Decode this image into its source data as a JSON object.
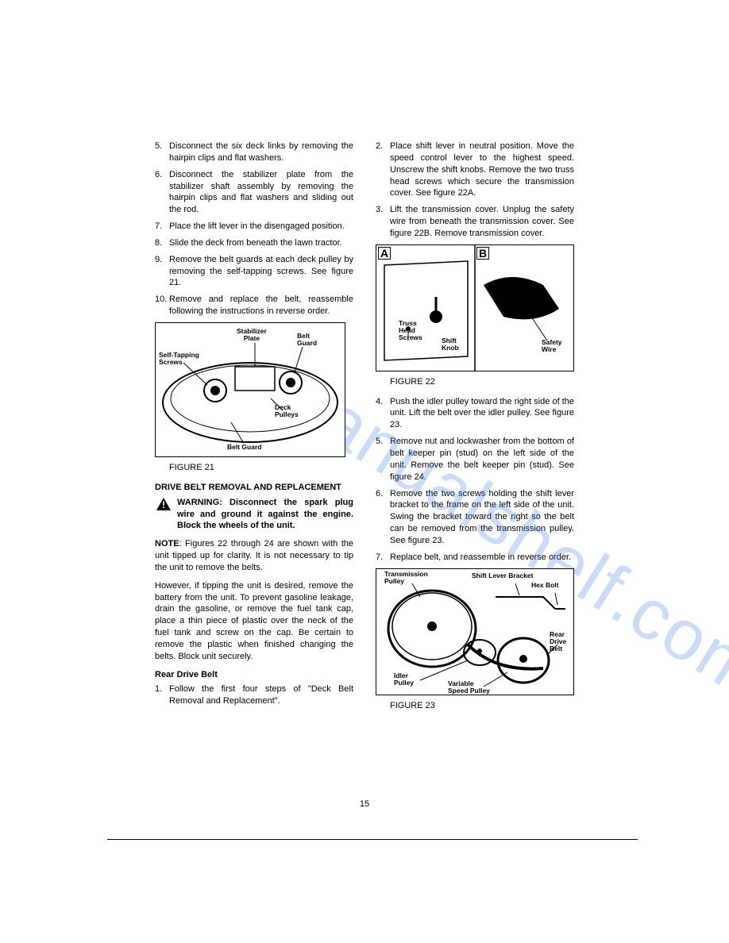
{
  "page_number": "15",
  "watermark": "manualshelf.com",
  "left_column": {
    "steps_a": [
      {
        "num": "5.",
        "text": "Disconnect the six deck links by removing the hairpin clips and flat washers."
      },
      {
        "num": "6.",
        "text": "Disconnect the stabilizer plate from the stabilizer shaft assembly by removing the hairpin clips and flat washers and sliding out the rod."
      },
      {
        "num": "7.",
        "text": "Place the lift lever in the disengaged position."
      },
      {
        "num": "8.",
        "text": "Slide the deck from beneath the lawn tractor."
      },
      {
        "num": "9.",
        "text": "Remove the belt guards at each deck pulley by removing the self-tapping screws. See figure 21."
      },
      {
        "num": "10.",
        "text": "Remove and replace the belt, reassemble following the instructions in reverse order."
      }
    ],
    "fig21": {
      "caption": "FIGURE 21",
      "labels": {
        "stabilizer_plate": "Stabilizer\nPlate",
        "belt_guard_top": "Belt\nGuard",
        "self_tapping": "Self-Tapping\nScrews",
        "deck_pulleys": "Deck\nPulleys",
        "belt_guard_bottom": "Belt Guard"
      }
    },
    "heading_drive": "DRIVE BELT REMOVAL AND REPLACEMENT",
    "warning": "WARNING: Disconnect the spark plug wire and ground it against the engine. Block the wheels of the unit.",
    "note": "NOTE: Figures 22 through 24 are shown with the unit tipped up for clarity. It is not necessary to tip the unit to remove the belts.",
    "para_tip": "However, if tipping the unit is desired, remove the battery from the unit. To prevent gasoline leakage, drain the gasoline, or remove the fuel tank cap, place a thin piece of plastic over the neck of the fuel tank and screw on the cap. Be certain to remove the plastic when finished changing the belts. Block unit securely.",
    "subheading_rear": "Rear Drive Belt",
    "rear_steps": [
      {
        "num": "1.",
        "text": "Follow the first four steps of \"Deck Belt Removal and Replacement\"."
      }
    ]
  },
  "right_column": {
    "steps_a": [
      {
        "num": "2.",
        "text": "Place shift lever in neutral position. Move the speed control lever to the highest speed. Unscrew the shift knobs. Remove the two truss head screws which secure the transmission cover. See figure 22A."
      },
      {
        "num": "3.",
        "text": "Lift the transmission cover. Unplug the safety wire from beneath the transmission cover. See figure 22B. Remove transmission cover."
      }
    ],
    "fig22": {
      "caption": "FIGURE 22",
      "panels": {
        "a": "A",
        "b": "B"
      },
      "labels": {
        "truss": "Truss\nHead\nScrews",
        "shift_knob": "Shift\nKnob",
        "safety_wire": "Safety\nWire"
      }
    },
    "steps_b": [
      {
        "num": "4.",
        "text": "Push the idler pulley toward the right side of the unit. Lift the belt over the idler pulley. See figure 23."
      },
      {
        "num": "5.",
        "text": "Remove nut and lockwasher from the bottom of belt keeper pin (stud) on the left side of the unit. Remove the belt keeper pin (stud). See figure 24."
      },
      {
        "num": "6.",
        "text": "Remove the two screws holding the shift lever bracket to the frame on the left side of the unit. Swing the bracket toward the right so the belt can be removed from the transmission pulley. See figure 23."
      },
      {
        "num": "7.",
        "text": "Replace belt, and reassemble in reverse order."
      }
    ],
    "fig23": {
      "caption": "FIGURE 23",
      "labels": {
        "trans_pulley": "Transmission\nPulley",
        "shift_bracket": "Shift Lever Bracket",
        "hex_bolt": "Hex Bolt",
        "rear_belt": "Rear\nDrive\nBelt",
        "idler_pulley": "Idler\nPulley",
        "var_speed": "Variable\nSpeed Pulley"
      }
    }
  }
}
